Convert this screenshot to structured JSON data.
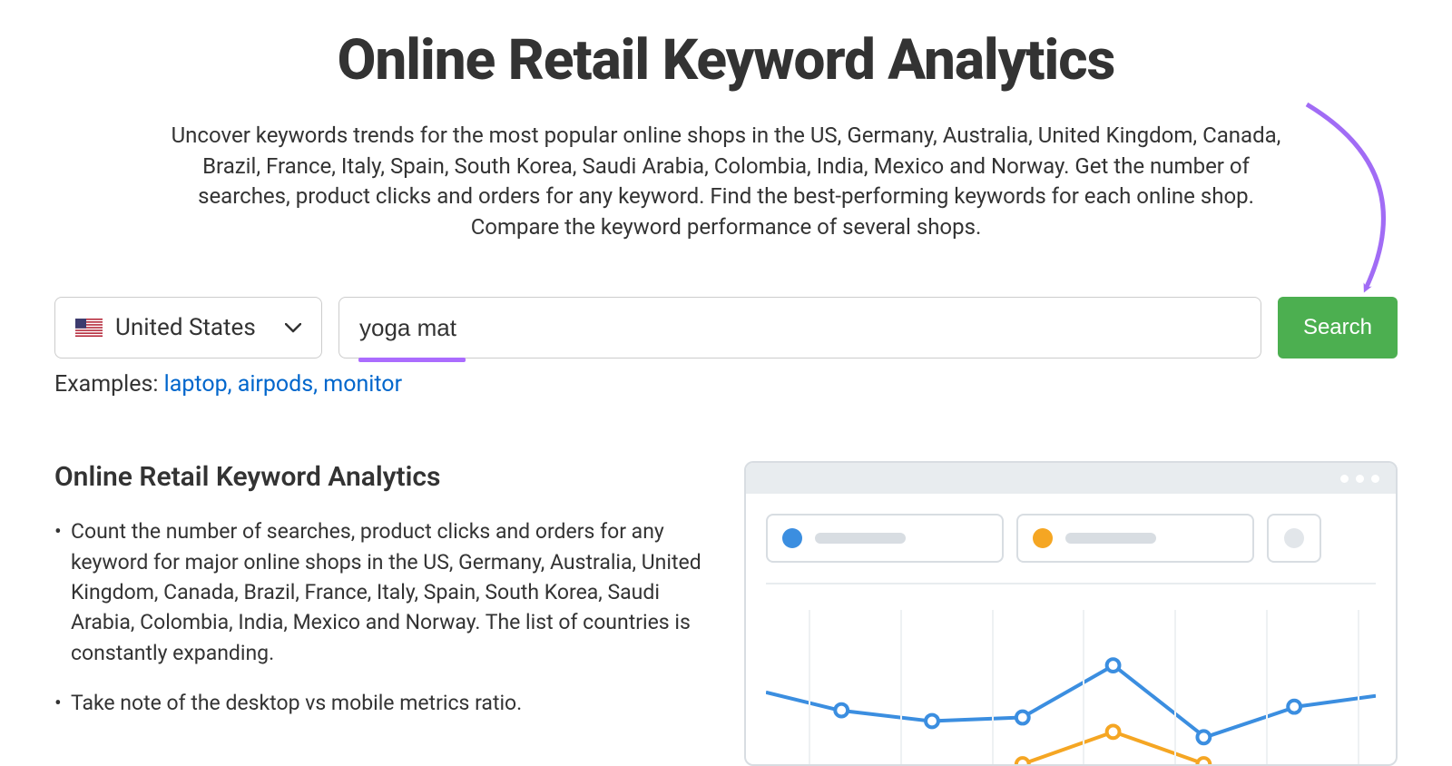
{
  "header": {
    "title": "Online Retail Keyword Analytics",
    "description": "Uncover keywords trends for the most popular online shops in the US, Germany, Australia, United Kingdom, Canada, Brazil, France, Italy, Spain, South Korea, Saudi Arabia, Colombia, India, Mexico and Norway. Get the number of searches, product clicks and orders for any keyword. Find the best-performing keywords for each online shop. Compare the keyword performance of several shops."
  },
  "search": {
    "country_selected": "United States",
    "input_value": "yoga mat",
    "button_label": "Search",
    "underline_color": "#ab6cfe"
  },
  "examples": {
    "label": "Examples:",
    "links_text": "laptop, airpods, monitor",
    "link_color": "#0066cc"
  },
  "features": {
    "heading": "Online Retail Keyword Analytics",
    "bullets": [
      "Count the number of searches, product clicks and orders for any keyword for major online shops in the US, Germany, Australia, United Kingdom, Canada, Brazil, France, Italy, Spain, South Korea, Saudi Arabia, Colombia, India, Mexico and Norway. The list of countries is constantly expanding.",
      "Take note of the desktop vs mobile metrics ratio."
    ]
  },
  "preview": {
    "titlebar_bg": "#e8ecef",
    "border_color": "#d8dde2",
    "pills": [
      {
        "dot_color": "#3b8ee0",
        "show_bar": true
      },
      {
        "dot_color": "#f5a623",
        "show_bar": true
      },
      {
        "dot_color": "#e2e6ea",
        "show_bar": false
      }
    ],
    "chart": {
      "type": "line",
      "grid_x_positions_pct": [
        7,
        22,
        37,
        52,
        67,
        82,
        97
      ],
      "grid_color": "#eef1f3",
      "series": [
        {
          "name": "blue",
          "stroke": "#3b8ee0",
          "fill_marker": "#ffffff",
          "stroke_width": 4,
          "marker_radius": 7,
          "points": [
            {
              "x_pct": 0,
              "y_pct": 60
            },
            {
              "x_pct": 12,
              "y_pct": 70
            },
            {
              "x_pct": 27,
              "y_pct": 76
            },
            {
              "x_pct": 42,
              "y_pct": 74
            },
            {
              "x_pct": 57,
              "y_pct": 45
            },
            {
              "x_pct": 72,
              "y_pct": 85
            },
            {
              "x_pct": 87,
              "y_pct": 68
            },
            {
              "x_pct": 100,
              "y_pct": 62
            }
          ]
        },
        {
          "name": "orange",
          "stroke": "#f5a623",
          "fill_marker": "#ffffff",
          "stroke_width": 4,
          "marker_radius": 7,
          "points": [
            {
              "x_pct": 42,
              "y_pct": 100
            },
            {
              "x_pct": 57,
              "y_pct": 82
            },
            {
              "x_pct": 72,
              "y_pct": 100
            }
          ]
        }
      ]
    }
  },
  "annotation": {
    "arrow_color": "#a16cf5"
  },
  "colors": {
    "text": "#333333",
    "button_bg": "#4caf50",
    "button_text": "#ffffff",
    "input_border": "#cccccc"
  }
}
